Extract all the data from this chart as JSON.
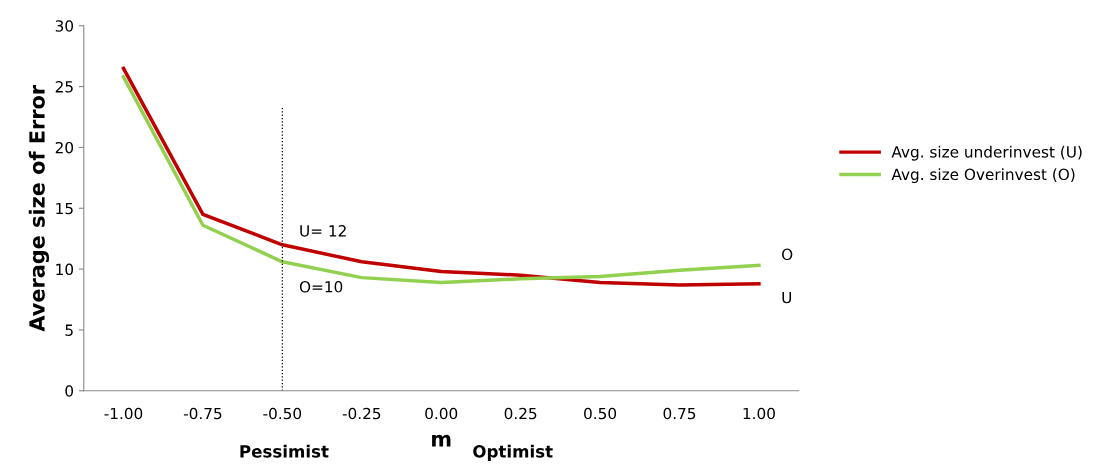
{
  "chart_data": {
    "type": "line",
    "ylabel": "Average size of Error",
    "xlabel": "m",
    "categories": [
      "-1.00",
      "-0.75",
      "-0.50",
      "-0.25",
      "0.00",
      "0.25",
      "0.50",
      "0.75",
      "1.00"
    ],
    "series": [
      {
        "name": "Avg. size underinvest (U)",
        "color": "#c00000",
        "values": [
          26.5,
          14.5,
          12.0,
          10.6,
          9.8,
          9.5,
          8.9,
          8.7,
          8.8
        ]
      },
      {
        "name": "Avg. size Overinvest (O)",
        "color": "#92d050",
        "values": [
          25.8,
          13.6,
          10.6,
          9.3,
          8.9,
          9.2,
          9.4,
          9.9,
          10.3
        ]
      }
    ],
    "ylim": [
      0,
      30
    ],
    "yticks": [
      0,
      5,
      10,
      15,
      20,
      25,
      30
    ],
    "ref_lines": [
      {
        "axis": "x",
        "value": "-0.50",
        "color": "#000000",
        "line_style": "dotted"
      }
    ],
    "annotations": [
      {
        "text": "U= 12",
        "x": "-0.50",
        "y": 12.0
      },
      {
        "text": "O=10",
        "x": "-0.50",
        "y": 10.6
      },
      {
        "text": "O",
        "x": "1.00",
        "y": 10.3
      },
      {
        "text": "U",
        "x": "1.00",
        "y": 8.8
      },
      "Pessimist",
      "Optimist"
    ],
    "legend": "right",
    "grid": false,
    "marker": "none",
    "line_style": "solid"
  }
}
